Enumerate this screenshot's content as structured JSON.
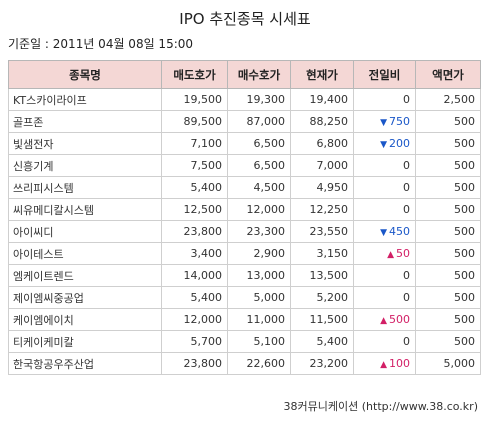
{
  "title": "IPO 추진종목 시세표",
  "base_date": "기준일 : 2011년 04월 08일 15:00",
  "columns": [
    "종목명",
    "매도호가",
    "매수호가",
    "현재가",
    "전일비",
    "액면가"
  ],
  "rows": [
    {
      "name": "KT스카이라이프",
      "ask": "19,500",
      "bid": "19,300",
      "price": "19,400",
      "change": "0",
      "dir": "none",
      "par": "2,500"
    },
    {
      "name": "골프존",
      "ask": "89,500",
      "bid": "87,000",
      "price": "88,250",
      "change": "750",
      "dir": "down",
      "par": "500"
    },
    {
      "name": "빛샘전자",
      "ask": "7,100",
      "bid": "6,500",
      "price": "6,800",
      "change": "200",
      "dir": "down",
      "par": "500"
    },
    {
      "name": "신흥기계",
      "ask": "7,500",
      "bid": "6,500",
      "price": "7,000",
      "change": "0",
      "dir": "none",
      "par": "500"
    },
    {
      "name": "쓰리피시스템",
      "ask": "5,400",
      "bid": "4,500",
      "price": "4,950",
      "change": "0",
      "dir": "none",
      "par": "500"
    },
    {
      "name": "씨유메디칼시스템",
      "ask": "12,500",
      "bid": "12,000",
      "price": "12,250",
      "change": "0",
      "dir": "none",
      "par": "500"
    },
    {
      "name": "아이씨디",
      "ask": "23,800",
      "bid": "23,300",
      "price": "23,550",
      "change": "450",
      "dir": "down",
      "par": "500"
    },
    {
      "name": "아이테스트",
      "ask": "3,400",
      "bid": "2,900",
      "price": "3,150",
      "change": "50",
      "dir": "up",
      "par": "500"
    },
    {
      "name": "엠케이트렌드",
      "ask": "14,000",
      "bid": "13,000",
      "price": "13,500",
      "change": "0",
      "dir": "none",
      "par": "500"
    },
    {
      "name": "제이엠씨중공업",
      "ask": "5,400",
      "bid": "5,000",
      "price": "5,200",
      "change": "0",
      "dir": "none",
      "par": "500"
    },
    {
      "name": "케이엠에이치",
      "ask": "12,000",
      "bid": "11,000",
      "price": "11,500",
      "change": "500",
      "dir": "up",
      "par": "500"
    },
    {
      "name": "티케이케미칼",
      "ask": "5,700",
      "bid": "5,100",
      "price": "5,400",
      "change": "0",
      "dir": "none",
      "par": "500"
    },
    {
      "name": "한국항공우주산업",
      "ask": "23,800",
      "bid": "22,600",
      "price": "23,200",
      "change": "100",
      "dir": "up",
      "par": "5,000"
    }
  ],
  "source": "38커뮤니케이션 (http://www.38.co.kr)",
  "colors": {
    "header_bg": "#f4d7d5",
    "down": "#1a57c8",
    "up": "#d21f66"
  },
  "icons": {
    "down": "triangle-down-icon",
    "up": "triangle-up-icon"
  }
}
